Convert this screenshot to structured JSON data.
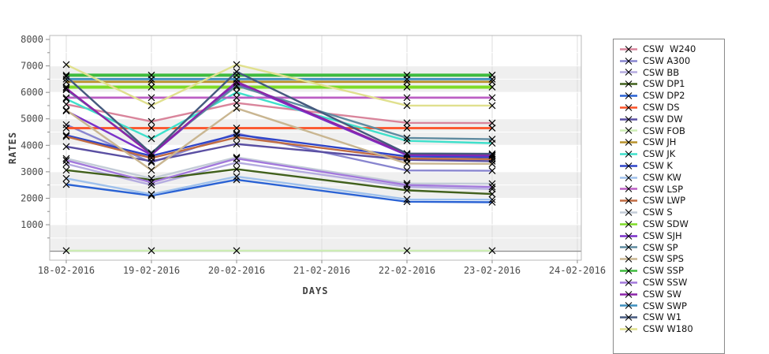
{
  "chart_data": {
    "type": "line",
    "title": "",
    "xlabel": "DAYS",
    "ylabel": "RATES",
    "x_tick_labels": [
      "18-02-2016",
      "19-02-2016",
      "20-02-2016",
      "21-02-2016",
      "22-02-2016",
      "23-02-2016",
      "24-02-2016"
    ],
    "data_dates": [
      "18-02-2016",
      "19-02-2016",
      "20-02-2016",
      "22-02-2016",
      "23-02-2016"
    ],
    "x_data_slot_indices": [
      0,
      1,
      2,
      4,
      5
    ],
    "y_ticks": [
      1000,
      2000,
      3000,
      4000,
      5000,
      6000,
      7000,
      8000
    ],
    "y_minor_step": 500,
    "ylim": [
      -350,
      8150
    ],
    "grid_bands_gray": [
      [
        0,
        1000
      ],
      [
        2000,
        3000
      ],
      [
        4000,
        5000
      ],
      [
        6000,
        7000
      ]
    ],
    "band_color": "#efefef",
    "vgrid_color": "#dcdcdc",
    "hgrid_color": "#ffffff",
    "zero_line_color": "#8c8c8c",
    "plot_border_color": "#b9b9b9",
    "marker": "black-x",
    "legend_position": "right",
    "series": [
      {
        "name": "CSW  W240",
        "color": "#d9849b",
        "values": [
          5550,
          4900,
          5600,
          4850,
          4840
        ],
        "width": 2.4
      },
      {
        "name": "CSW A300",
        "color": "#8885cf",
        "values": [
          4780,
          3350,
          4450,
          3050,
          3040
        ],
        "width": 2.4
      },
      {
        "name": "CSW BB",
        "color": "#b5ace0",
        "values": [
          3300,
          2500,
          3350,
          2430,
          2350
        ],
        "width": 2.4
      },
      {
        "name": "CSW DP1",
        "color": "#41601c",
        "values": [
          3060,
          2700,
          3100,
          2300,
          2160
        ],
        "width": 2.4
      },
      {
        "name": "CSW DP2",
        "color": "#2a62d4",
        "values": [
          2520,
          2100,
          2700,
          1870,
          1850
        ],
        "width": 2.4
      },
      {
        "name": "CSW DS",
        "color": "#fc5126",
        "values": [
          4650,
          4650,
          4650,
          4650,
          4650
        ],
        "width": 2.8
      },
      {
        "name": "CSW DW",
        "color": "#5a4fa2",
        "values": [
          3950,
          3400,
          4050,
          3450,
          3400
        ],
        "width": 2.4
      },
      {
        "name": "CSW FOB",
        "color": "#cdedb5",
        "values": [
          20,
          20,
          20,
          20,
          20
        ],
        "width": 2.4
      },
      {
        "name": "CSW JH",
        "color": "#b8922c",
        "values": [
          6400,
          6400,
          6400,
          6400,
          6400
        ],
        "width": 2.8
      },
      {
        "name": "CSW JK",
        "color": "#3fe0cb",
        "values": [
          5750,
          4250,
          6000,
          4170,
          4080
        ],
        "width": 2.4
      },
      {
        "name": "CSW K",
        "color": "#2f45c8",
        "values": [
          4380,
          3600,
          4400,
          3580,
          3550
        ],
        "width": 2.4
      },
      {
        "name": "CSW KW",
        "color": "#9fc1ec",
        "values": [
          2750,
          2150,
          2820,
          1960,
          1950
        ],
        "width": 2.4
      },
      {
        "name": "CSW LSP",
        "color": "#bc5fc4",
        "values": [
          5800,
          5800,
          5800,
          5800,
          5800
        ],
        "width": 2.8
      },
      {
        "name": "CSW LWP",
        "color": "#c06b42",
        "values": [
          4330,
          3520,
          4300,
          3500,
          3480
        ],
        "width": 2.4
      },
      {
        "name": "CSW S",
        "color": "#c3ccd7",
        "values": [
          3500,
          2750,
          3550,
          2560,
          2550
        ],
        "width": 2.4
      },
      {
        "name": "CSW SDW",
        "color": "#7edc27",
        "values": [
          6200,
          6200,
          6200,
          6200,
          6200
        ],
        "width": 4.0
      },
      {
        "name": "CSW SJH",
        "color": "#7a31c9",
        "values": [
          5300,
          3640,
          6350,
          3630,
          3610
        ],
        "width": 2.4
      },
      {
        "name": "CSW SP",
        "color": "#5f8ba0",
        "values": [
          6100,
          3720,
          6250,
          4280,
          4230
        ],
        "width": 2.4
      },
      {
        "name": "CSW SPS",
        "color": "#c9b691",
        "values": [
          5330,
          3060,
          5400,
          3310,
          3300
        ],
        "width": 2.4
      },
      {
        "name": "CSW SSP",
        "color": "#3fbb3f",
        "values": [
          6650,
          6650,
          6650,
          6650,
          6650
        ],
        "width": 4.0
      },
      {
        "name": "CSW SSW",
        "color": "#a379dc",
        "values": [
          3430,
          2600,
          3500,
          2500,
          2430
        ],
        "width": 2.4
      },
      {
        "name": "CSW SW",
        "color": "#8b24a9",
        "values": [
          6150,
          3660,
          6400,
          3660,
          3630
        ],
        "width": 2.4
      },
      {
        "name": "CSW SWP",
        "color": "#3e8fbe",
        "values": [
          6500,
          6500,
          6500,
          6500,
          6500
        ],
        "width": 2.8
      },
      {
        "name": "CSW W1",
        "color": "#45597e",
        "values": [
          6600,
          3690,
          6780,
          3690,
          3680
        ],
        "width": 2.4
      },
      {
        "name": "CSW W180",
        "color": "#e0e08e",
        "values": [
          7050,
          5500,
          7050,
          5500,
          5500
        ],
        "width": 2.4
      }
    ]
  }
}
